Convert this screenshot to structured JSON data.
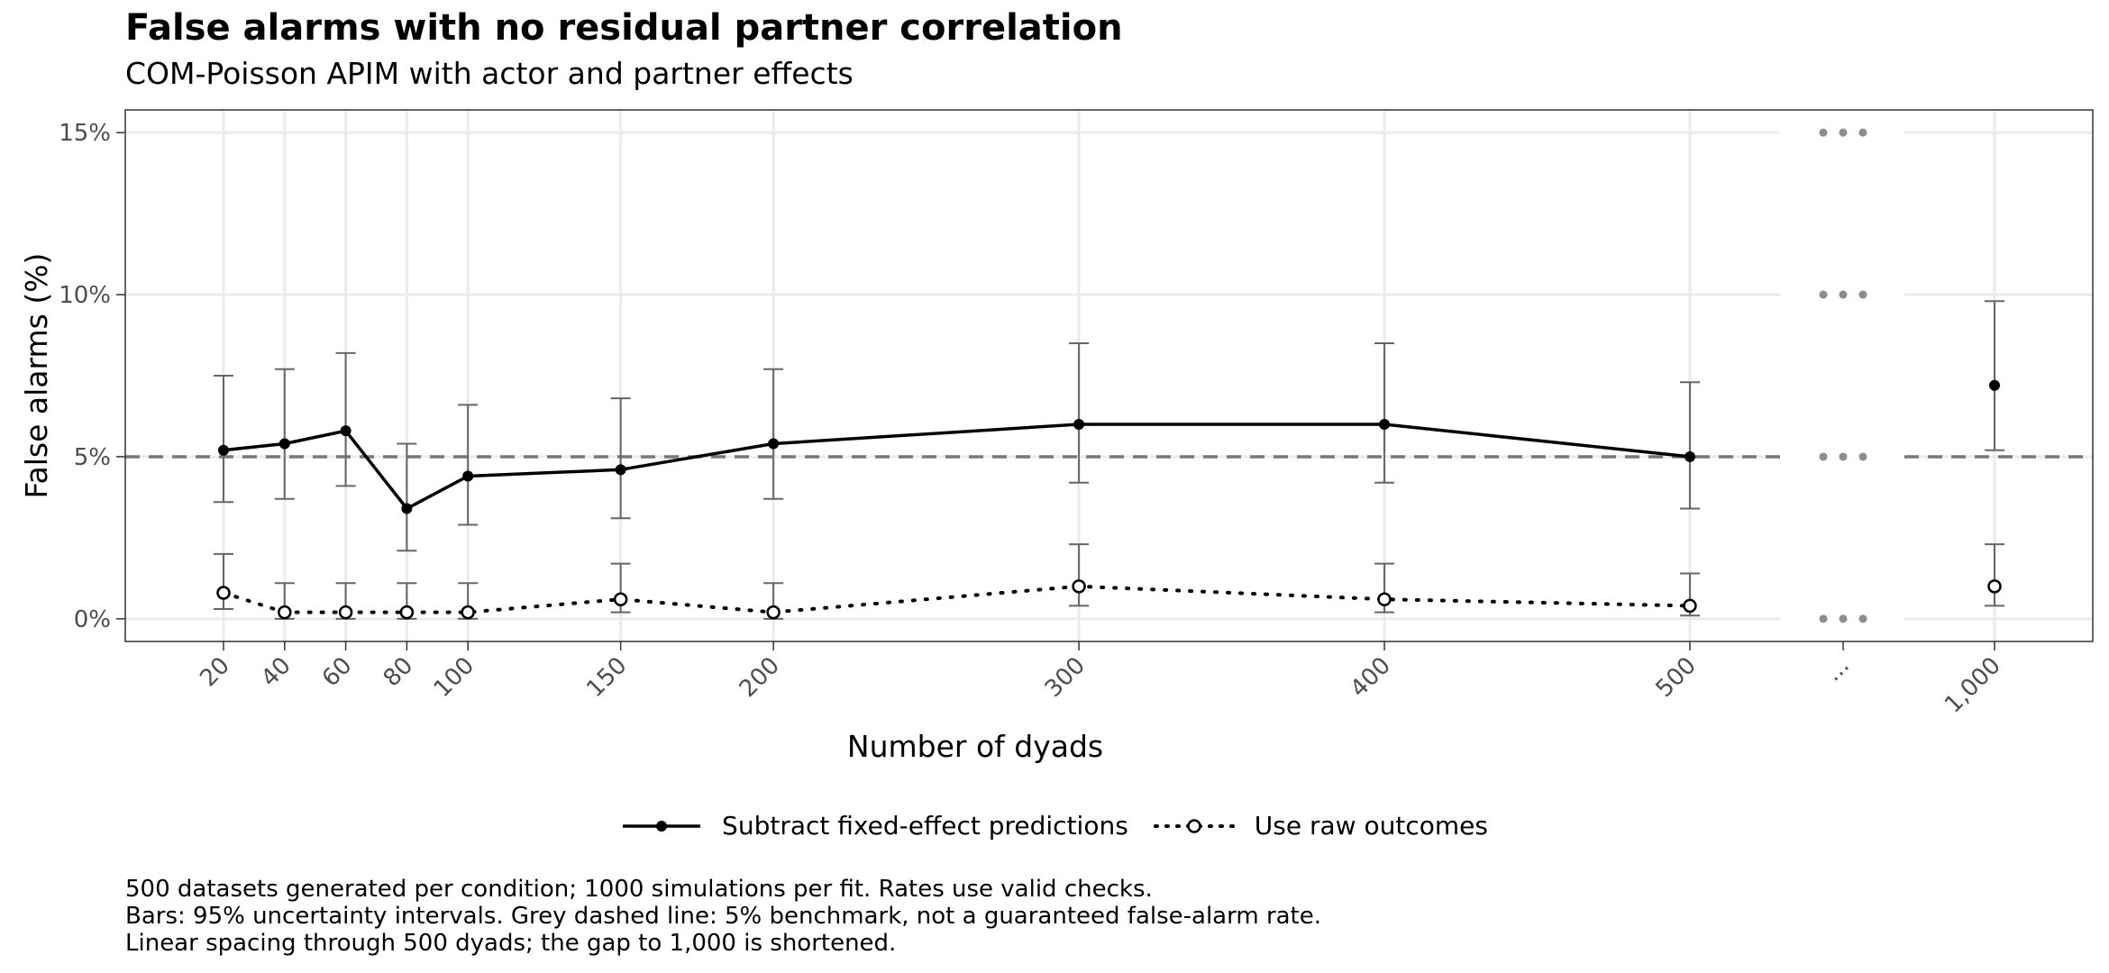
{
  "chart_data": {
    "type": "line",
    "title": "False alarms with no residual partner correlation",
    "subtitle": "COM-Poisson APIM with actor and partner effects",
    "xlabel": "Number of dyads",
    "ylabel": "False alarms (%)",
    "ylim": [
      -0.7,
      15.7
    ],
    "y_ticks": [
      {
        "value": 0,
        "label": "0%"
      },
      {
        "value": 5,
        "label": "5%"
      },
      {
        "value": 10,
        "label": "10%"
      },
      {
        "value": 15,
        "label": "15%"
      }
    ],
    "x_ticks": [
      "20",
      "40",
      "60",
      "80",
      "100",
      "150",
      "200",
      "300",
      "400",
      "500",
      "...",
      "1,000"
    ],
    "x_values": [
      20,
      40,
      60,
      80,
      100,
      150,
      200,
      300,
      400,
      500,
      1000
    ],
    "benchmark": 5,
    "grid": true,
    "legend_position": "bottom",
    "series": [
      {
        "name": "Subtract fixed-effect predictions",
        "style": "solid",
        "marker": "filled-circle",
        "color": "#000000",
        "values": [
          5.2,
          5.4,
          5.8,
          3.4,
          4.4,
          4.6,
          5.4,
          6.0,
          6.0,
          5.0,
          7.2
        ],
        "lower": [
          3.6,
          3.7,
          4.1,
          2.1,
          2.9,
          3.1,
          3.7,
          4.2,
          4.2,
          3.4,
          5.2
        ],
        "upper": [
          7.5,
          7.7,
          8.2,
          5.4,
          6.6,
          6.8,
          7.7,
          8.5,
          8.5,
          7.3,
          9.8
        ]
      },
      {
        "name": "Use raw outcomes",
        "style": "dotted",
        "marker": "open-circle",
        "color": "#000000",
        "values": [
          0.8,
          0.2,
          0.2,
          0.2,
          0.2,
          0.6,
          0.2,
          1.0,
          0.6,
          0.4,
          1.0
        ],
        "lower": [
          0.3,
          0.0,
          0.0,
          0.0,
          0.0,
          0.2,
          0.0,
          0.4,
          0.2,
          0.1,
          0.4
        ],
        "upper": [
          2.0,
          1.1,
          1.1,
          1.1,
          1.1,
          1.7,
          1.1,
          2.3,
          1.7,
          1.4,
          2.3
        ]
      }
    ]
  },
  "caption": [
    "500 datasets generated per condition; 1000 simulations per fit. Rates use valid checks.",
    "Bars: 95% uncertainty intervals. Grey dashed line: 5% benchmark, not a guaranteed false-alarm rate.",
    "Linear spacing through 500 dyads; the gap to 1,000 is shortened."
  ]
}
